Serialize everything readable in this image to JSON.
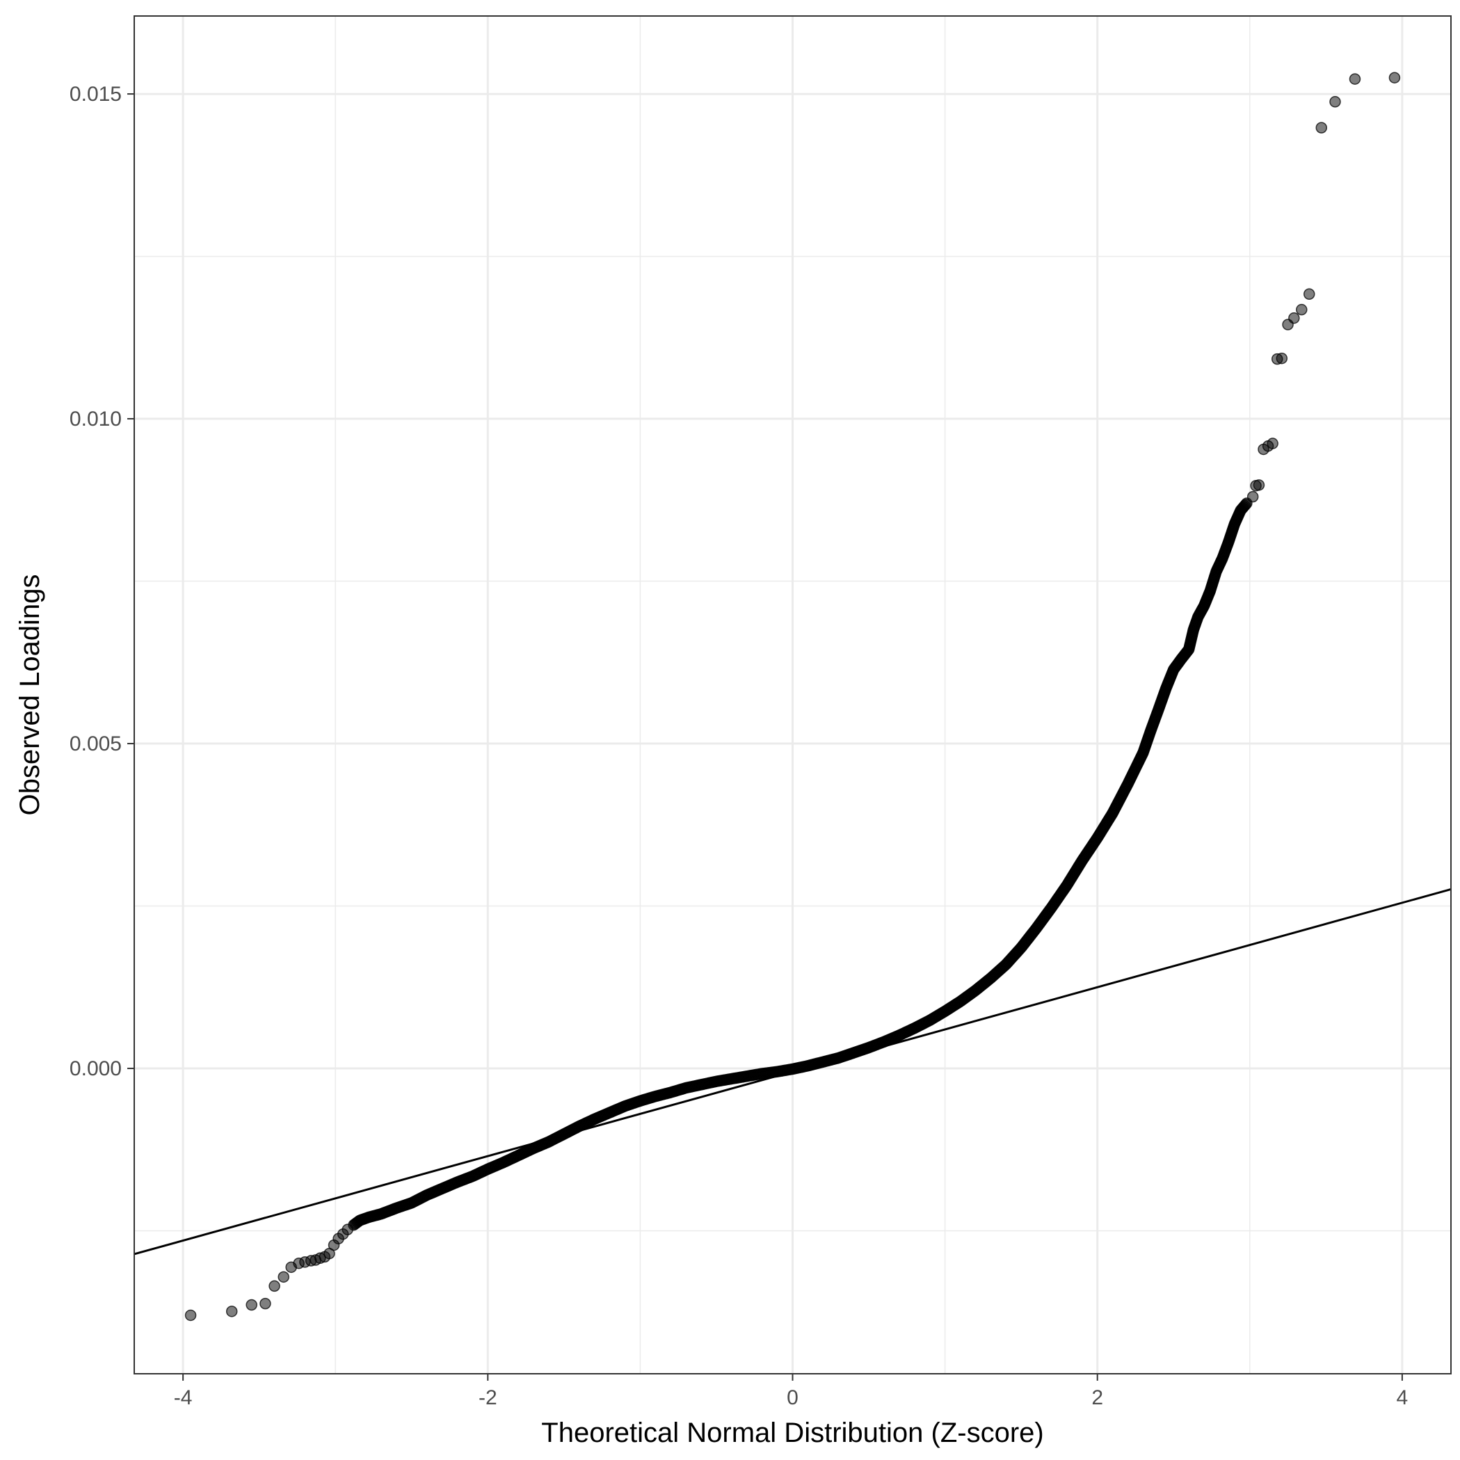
{
  "chart_data": {
    "type": "scatter",
    "title": "",
    "xlabel": "Theoretical Normal Distribution (Z-score)",
    "ylabel": "Observed Loadings",
    "xlim": [
      -4.32,
      4.32
    ],
    "ylim": [
      -0.0047,
      0.0162
    ],
    "x_ticks": [
      -4,
      -2,
      0,
      2,
      4
    ],
    "x_tick_labels": [
      "-4",
      "-2",
      "0",
      "2",
      "4"
    ],
    "y_ticks": [
      0.0,
      0.005,
      0.01,
      0.015
    ],
    "y_tick_labels": [
      "0.000",
      "0.005",
      "0.010",
      "0.015"
    ],
    "grid": true,
    "legend": "none",
    "reference_line": {
      "slope": 0.00065,
      "intercept": -5e-05
    },
    "series": [
      {
        "points": [
          [
            -3.95,
            -0.0038
          ],
          [
            -3.68,
            -0.00374
          ],
          [
            -3.55,
            -0.00364
          ],
          [
            -3.46,
            -0.00362
          ],
          [
            -3.4,
            -0.00335
          ],
          [
            -3.34,
            -0.00321
          ],
          [
            -3.29,
            -0.00306
          ],
          [
            -3.24,
            -0.003
          ],
          [
            -3.2,
            -0.00298
          ],
          [
            -3.16,
            -0.00296
          ],
          [
            -3.13,
            -0.00295
          ],
          [
            -3.1,
            -0.00292
          ],
          [
            -3.07,
            -0.0029
          ],
          [
            -3.04,
            -0.00285
          ],
          [
            -3.01,
            -0.00272
          ],
          [
            -2.98,
            -0.00262
          ],
          [
            -2.95,
            -0.00255
          ],
          [
            -2.92,
            -0.00248
          ],
          [
            -2.88,
            -0.00241
          ],
          [
            -2.84,
            -0.00234
          ],
          [
            -2.78,
            -0.00229
          ],
          [
            -2.7,
            -0.00224
          ],
          [
            -2.6,
            -0.00215
          ],
          [
            -2.5,
            -0.00207
          ],
          [
            -2.4,
            -0.00195
          ],
          [
            -2.3,
            -0.00185
          ],
          [
            -2.2,
            -0.00175
          ],
          [
            -2.1,
            -0.00166
          ],
          [
            -2.0,
            -0.00155
          ],
          [
            -1.9,
            -0.00145
          ],
          [
            -1.8,
            -0.00134
          ],
          [
            -1.7,
            -0.00123
          ],
          [
            -1.6,
            -0.00113
          ],
          [
            -1.5,
            -0.00101
          ],
          [
            -1.4,
            -0.00089
          ],
          [
            -1.3,
            -0.00078
          ],
          [
            -1.2,
            -0.00068
          ],
          [
            -1.1,
            -0.00058
          ],
          [
            -1.0,
            -0.0005
          ],
          [
            -0.9,
            -0.00043
          ],
          [
            -0.8,
            -0.00037
          ],
          [
            -0.7,
            -0.0003
          ],
          [
            -0.6,
            -0.00025
          ],
          [
            -0.5,
            -0.0002
          ],
          [
            -0.4,
            -0.00016
          ],
          [
            -0.3,
            -0.00012
          ],
          [
            -0.2,
            -8e-05
          ],
          [
            -0.1,
            -5e-05
          ],
          [
            0.0,
            -1e-05
          ],
          [
            0.1,
            4e-05
          ],
          [
            0.2,
            0.0001
          ],
          [
            0.3,
            0.00016
          ],
          [
            0.4,
            0.00024
          ],
          [
            0.5,
            0.00032
          ],
          [
            0.6,
            0.00041
          ],
          [
            0.7,
            0.00051
          ],
          [
            0.8,
            0.00062
          ],
          [
            0.9,
            0.00074
          ],
          [
            1.0,
            0.00088
          ],
          [
            1.1,
            0.00103
          ],
          [
            1.2,
            0.0012
          ],
          [
            1.3,
            0.00139
          ],
          [
            1.4,
            0.0016
          ],
          [
            1.5,
            0.00186
          ],
          [
            1.6,
            0.00216
          ],
          [
            1.7,
            0.00248
          ],
          [
            1.8,
            0.00282
          ],
          [
            1.9,
            0.0032
          ],
          [
            2.0,
            0.00355
          ],
          [
            2.1,
            0.00393
          ],
          [
            2.2,
            0.00438
          ],
          [
            2.3,
            0.00486
          ],
          [
            2.35,
            0.0052
          ],
          [
            2.4,
            0.00552
          ],
          [
            2.45,
            0.00585
          ],
          [
            2.5,
            0.00614
          ],
          [
            2.55,
            0.0063
          ],
          [
            2.6,
            0.00645
          ],
          [
            2.63,
            0.00675
          ],
          [
            2.66,
            0.00695
          ],
          [
            2.7,
            0.00712
          ],
          [
            2.74,
            0.00735
          ],
          [
            2.78,
            0.00765
          ],
          [
            2.82,
            0.00785
          ],
          [
            2.86,
            0.0081
          ],
          [
            2.9,
            0.00838
          ],
          [
            2.94,
            0.00859
          ],
          [
            2.98,
            0.0087
          ],
          [
            3.02,
            0.0088
          ],
          [
            3.04,
            0.00897
          ],
          [
            3.06,
            0.00898
          ],
          [
            3.09,
            0.00953
          ],
          [
            3.12,
            0.00958
          ],
          [
            3.15,
            0.00962
          ],
          [
            3.18,
            0.01092
          ],
          [
            3.21,
            0.01093
          ],
          [
            3.25,
            0.01145
          ],
          [
            3.29,
            0.01155
          ],
          [
            3.34,
            0.01168
          ],
          [
            3.39,
            0.01192
          ],
          [
            3.47,
            0.01448
          ],
          [
            3.56,
            0.01488
          ],
          [
            3.69,
            0.01523
          ],
          [
            3.95,
            0.01525
          ]
        ]
      }
    ]
  }
}
